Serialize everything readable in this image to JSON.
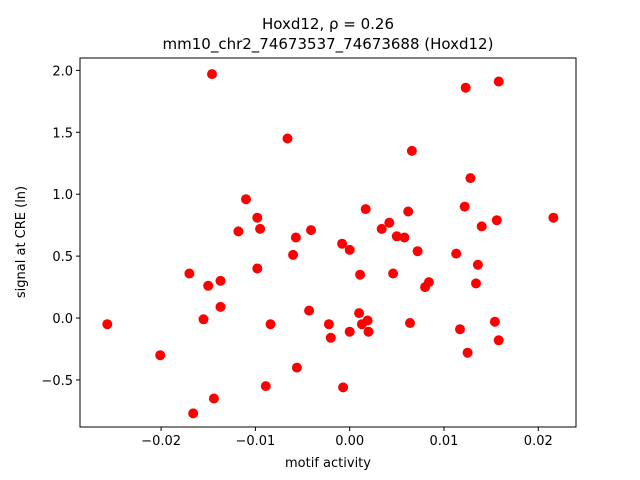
{
  "chart_data": {
    "type": "scatter",
    "title_line1": "Hoxd12, ρ = 0.26",
    "title_line2": "mm10_chr2_74673537_74673688 (Hoxd12)",
    "xlabel": "motif activity",
    "ylabel": "signal at CRE (ln)",
    "xlim": [
      -0.0286,
      0.024
    ],
    "ylim": [
      -0.88,
      2.1
    ],
    "xticks": [
      -0.02,
      -0.01,
      0.0,
      0.01,
      0.02
    ],
    "xtick_labels": [
      "−0.02",
      "−0.01",
      "0.00",
      "0.01",
      "0.02"
    ],
    "yticks": [
      -0.5,
      0.0,
      0.5,
      1.0,
      1.5,
      2.0
    ],
    "ytick_labels": [
      "−0.5",
      "0.0",
      "0.5",
      "1.0",
      "1.5",
      "2.0"
    ],
    "grid": false,
    "marker_color": "#ff0000",
    "points": [
      {
        "x": -0.0257,
        "y": -0.05
      },
      {
        "x": -0.0201,
        "y": -0.3
      },
      {
        "x": -0.017,
        "y": 0.36
      },
      {
        "x": -0.0166,
        "y": -0.77
      },
      {
        "x": -0.0155,
        "y": -0.01
      },
      {
        "x": -0.015,
        "y": 0.26
      },
      {
        "x": -0.0146,
        "y": 1.97
      },
      {
        "x": -0.0144,
        "y": -0.65
      },
      {
        "x": -0.0137,
        "y": 0.3
      },
      {
        "x": -0.0137,
        "y": 0.09
      },
      {
        "x": -0.0118,
        "y": 0.7
      },
      {
        "x": -0.011,
        "y": 0.96
      },
      {
        "x": -0.0098,
        "y": 0.81
      },
      {
        "x": -0.0098,
        "y": 0.4
      },
      {
        "x": -0.0095,
        "y": 0.72
      },
      {
        "x": -0.0089,
        "y": -0.55
      },
      {
        "x": -0.0084,
        "y": -0.05
      },
      {
        "x": -0.0066,
        "y": 1.45
      },
      {
        "x": -0.006,
        "y": 0.51
      },
      {
        "x": -0.0057,
        "y": 0.65
      },
      {
        "x": -0.0056,
        "y": -0.4
      },
      {
        "x": -0.0043,
        "y": 0.06
      },
      {
        "x": -0.0041,
        "y": 0.71
      },
      {
        "x": -0.0022,
        "y": -0.05
      },
      {
        "x": -0.002,
        "y": -0.16
      },
      {
        "x": -0.0008,
        "y": 0.6
      },
      {
        "x": -0.0007,
        "y": -0.56
      },
      {
        "x": 0.0,
        "y": 0.55
      },
      {
        "x": 0.0,
        "y": -0.11
      },
      {
        "x": 0.001,
        "y": 0.04
      },
      {
        "x": 0.0011,
        "y": 0.35
      },
      {
        "x": 0.0013,
        "y": -0.05
      },
      {
        "x": 0.0017,
        "y": 0.88
      },
      {
        "x": 0.0019,
        "y": -0.02
      },
      {
        "x": 0.002,
        "y": -0.11
      },
      {
        "x": 0.0034,
        "y": 0.72
      },
      {
        "x": 0.0042,
        "y": 0.77
      },
      {
        "x": 0.0046,
        "y": 0.36
      },
      {
        "x": 0.005,
        "y": 0.66
      },
      {
        "x": 0.0058,
        "y": 0.65
      },
      {
        "x": 0.0062,
        "y": 0.86
      },
      {
        "x": 0.0064,
        "y": -0.04
      },
      {
        "x": 0.0066,
        "y": 1.35
      },
      {
        "x": 0.0072,
        "y": 0.54
      },
      {
        "x": 0.008,
        "y": 0.25
      },
      {
        "x": 0.0084,
        "y": 0.29
      },
      {
        "x": 0.0113,
        "y": 0.52
      },
      {
        "x": 0.0117,
        "y": -0.09
      },
      {
        "x": 0.0122,
        "y": 0.9
      },
      {
        "x": 0.0123,
        "y": 1.86
      },
      {
        "x": 0.0125,
        "y": -0.28
      },
      {
        "x": 0.0128,
        "y": 1.13
      },
      {
        "x": 0.0134,
        "y": 0.28
      },
      {
        "x": 0.0136,
        "y": 0.43
      },
      {
        "x": 0.014,
        "y": 0.74
      },
      {
        "x": 0.0154,
        "y": -0.03
      },
      {
        "x": 0.0156,
        "y": 0.79
      },
      {
        "x": 0.0158,
        "y": 1.91
      },
      {
        "x": 0.0158,
        "y": -0.18
      },
      {
        "x": 0.0216,
        "y": 0.81
      }
    ]
  }
}
